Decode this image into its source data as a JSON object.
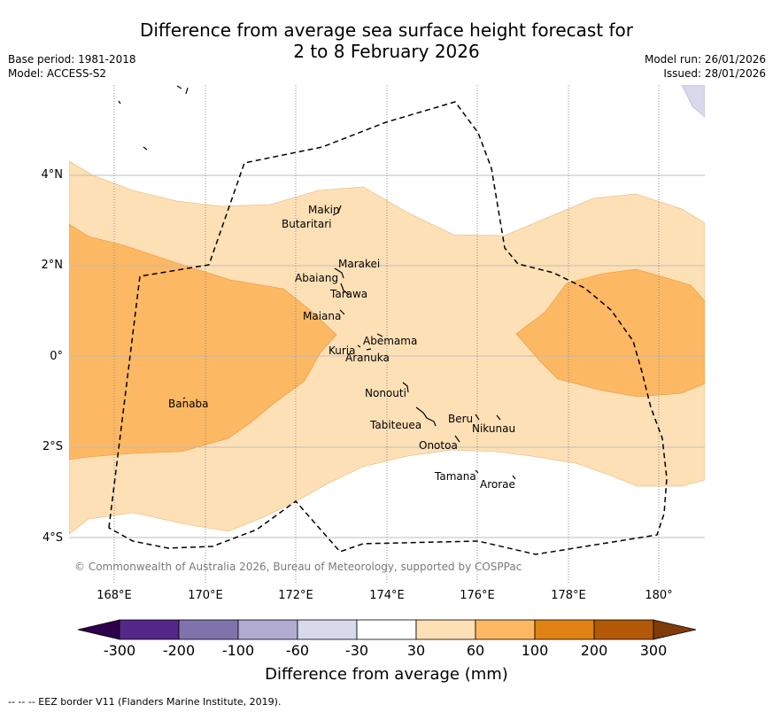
{
  "title_line1": "Difference from average sea surface height forecast for",
  "title_line2": "2 to 8 February 2026",
  "base_period": "Base period: 1981-2018",
  "model": "Model: ACCESS-S2",
  "model_run": "Model run: 26/01/2026",
  "issued": "Issued: 28/01/2026",
  "lat_labels": [
    "4°N",
    "2°N",
    "0°",
    "2°S",
    "4°S"
  ],
  "lon_labels": [
    "168°E",
    "170°E",
    "172°E",
    "174°E",
    "176°E",
    "178°E",
    "180°"
  ],
  "islands": [
    "Makin",
    "Butaritari",
    "Marakei",
    "Abaiang",
    "Tarawa",
    "Maiana",
    "Abemama",
    "Kuria",
    "Aranuka",
    "Banaba",
    "Nonouti",
    "Tabiteuea",
    "Beru",
    "Nikunau",
    "Onotoa",
    "Tamana",
    "Arorae"
  ],
  "copyright": "© Commonwealth of Australia 2026, Bureau of Meteorology, supported by COSPPac",
  "colorbar": {
    "ticks": [
      "-300",
      "-200",
      "-100",
      "-60",
      "-30",
      "30",
      "60",
      "100",
      "200",
      "300"
    ],
    "colors": [
      "#2d004b",
      "#542788",
      "#8073ac",
      "#b2abd2",
      "#d8daeb",
      "#ffffff",
      "#fee0b6",
      "#fdb863",
      "#e08214",
      "#b35806",
      "#7f3b08"
    ],
    "title": "Difference from average (mm)"
  },
  "eez_note": "--  --  -- EEZ border V11 (Flanders Marine Institute, 2019)."
}
